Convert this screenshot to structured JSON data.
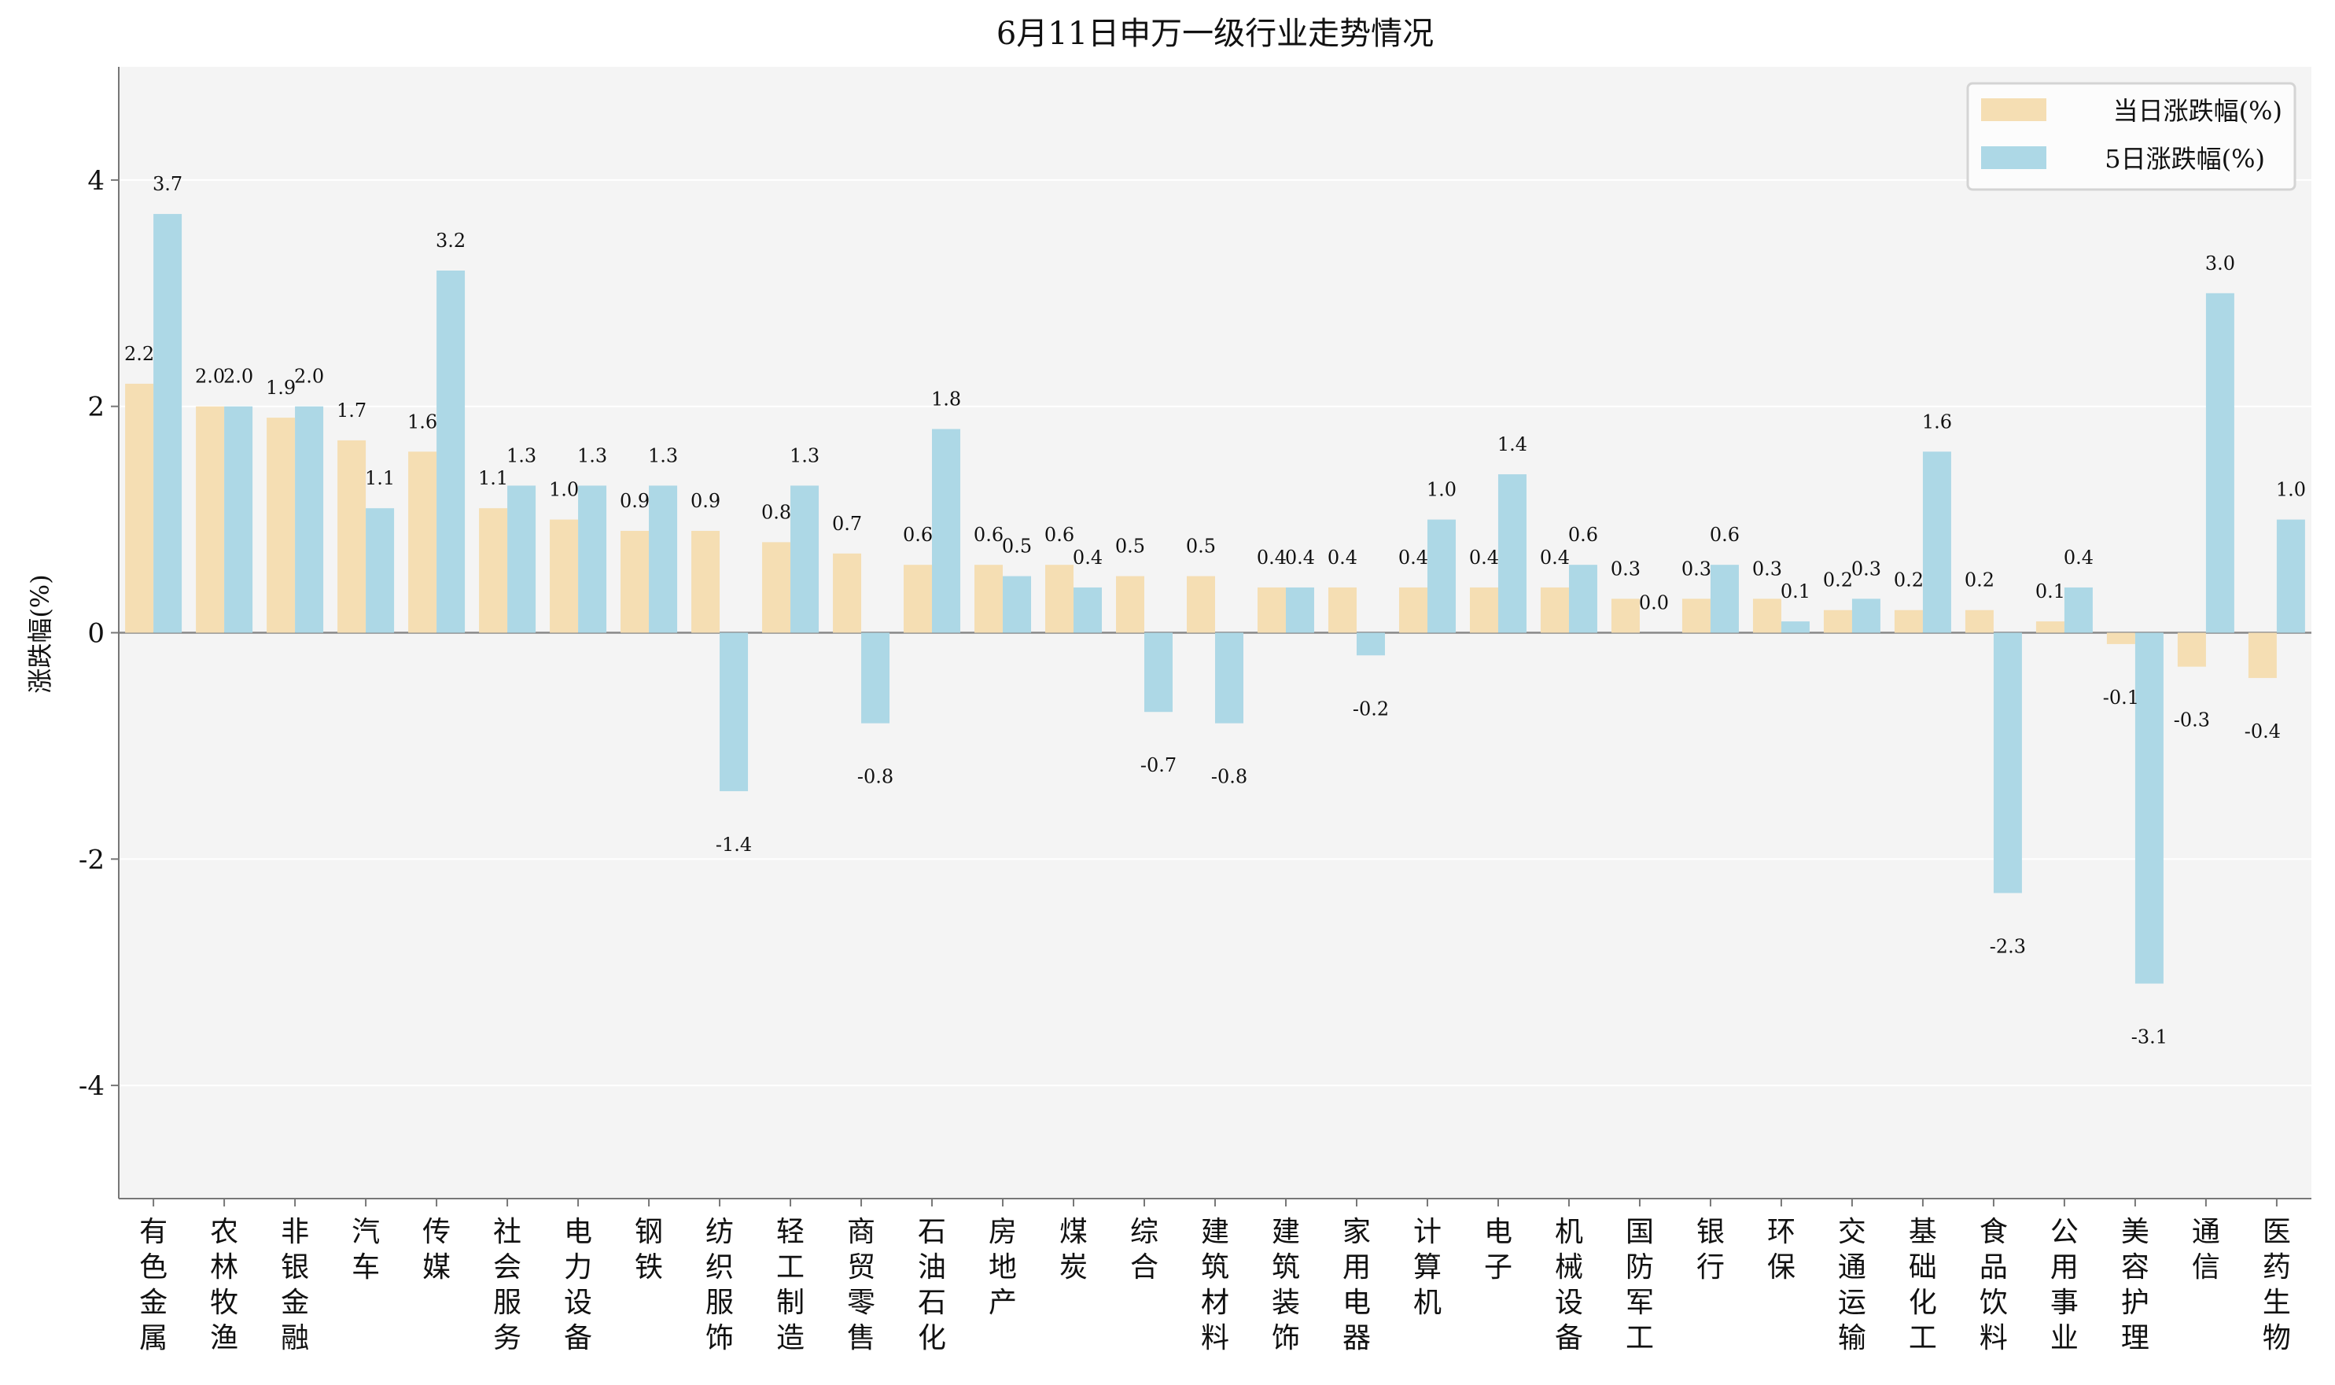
{
  "chart_data": {
    "type": "bar",
    "title": "6月11日申万一级行业走势情况",
    "xlabel": "",
    "ylabel": "涨跌幅(%)",
    "ylim": [
      -5,
      5
    ],
    "yticks": [
      -4,
      -2,
      0,
      2,
      4
    ],
    "grid": true,
    "legend_position": "top-right",
    "categories": [
      "有色金属",
      "农林牧渔",
      "非银金融",
      "汽车",
      "传媒",
      "社会服务",
      "电力设备",
      "钢铁",
      "纺织服饰",
      "轻工制造",
      "商贸零售",
      "石油石化",
      "房地产",
      "煤炭",
      "综合",
      "建筑材料",
      "建筑装饰",
      "家用电器",
      "计算机",
      "电子",
      "机械设备",
      "国防军工",
      "银行",
      "环保",
      "交通运输",
      "基础化工",
      "食品饮料",
      "公用事业",
      "美容护理",
      "通信",
      "医药生物"
    ],
    "series": [
      {
        "name": "当日涨跌幅(%)",
        "color": "#f5deb3",
        "values": [
          2.2,
          2.0,
          1.9,
          1.7,
          1.6,
          1.1,
          1.0,
          0.9,
          0.9,
          0.8,
          0.7,
          0.6,
          0.6,
          0.6,
          0.5,
          0.5,
          0.4,
          0.4,
          0.4,
          0.4,
          0.4,
          0.3,
          0.3,
          0.3,
          0.2,
          0.2,
          0.2,
          0.1,
          -0.1,
          -0.3,
          -0.4
        ]
      },
      {
        "name": "5日涨跌幅(%)",
        "color": "#add8e6",
        "values": [
          3.7,
          2.0,
          2.0,
          1.1,
          3.2,
          1.3,
          1.3,
          1.3,
          -1.4,
          1.3,
          -0.8,
          1.8,
          0.5,
          0.4,
          -0.7,
          -0.8,
          0.4,
          -0.2,
          1.0,
          1.4,
          0.6,
          0.0,
          0.6,
          0.1,
          0.3,
          1.6,
          -2.3,
          0.4,
          -3.1,
          3.0,
          1.0
        ]
      }
    ]
  }
}
